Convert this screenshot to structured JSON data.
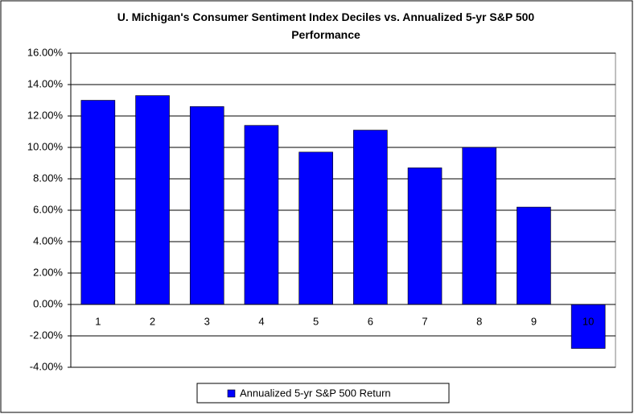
{
  "chart_data": {
    "type": "bar",
    "title": "U. Michigan's Consumer Sentiment Index Deciles vs. Annualized 5-yr S&P 500 Performance",
    "categories": [
      "1",
      "2",
      "3",
      "4",
      "5",
      "6",
      "7",
      "8",
      "9",
      "10"
    ],
    "series": [
      {
        "name": "Annualized 5-yr S&P 500 Return",
        "color": "#0000ff",
        "values": [
          13.0,
          13.3,
          12.6,
          11.4,
          9.7,
          11.1,
          8.7,
          10.0,
          6.2,
          -2.8
        ]
      }
    ],
    "ylim": [
      -4,
      16
    ],
    "yticks": [
      {
        "value": -4,
        "label": "-4.00%"
      },
      {
        "value": -2,
        "label": "-2.00%"
      },
      {
        "value": 0,
        "label": "0.00%"
      },
      {
        "value": 2,
        "label": "2.00%"
      },
      {
        "value": 4,
        "label": "4.00%"
      },
      {
        "value": 6,
        "label": "6.00%"
      },
      {
        "value": 8,
        "label": "8.00%"
      },
      {
        "value": 10,
        "label": "10.00%"
      },
      {
        "value": 12,
        "label": "12.00%"
      },
      {
        "value": 14,
        "label": "14.00%"
      },
      {
        "value": 16,
        "label": "16.00%"
      }
    ],
    "grid": true,
    "legend": "bottom"
  }
}
